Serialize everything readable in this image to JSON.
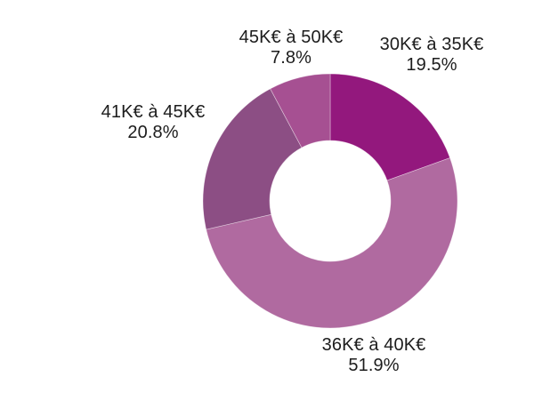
{
  "page": {
    "background": "#ffffff",
    "label_color": "#1c1c1c"
  },
  "chart_data": {
    "type": "pie",
    "variant": "donut",
    "title": "",
    "legend": "none",
    "direction": "clockwise",
    "start_angle_deg": 0,
    "center": [
      371,
      226
    ],
    "outer_radius": 143,
    "inner_radius": 68,
    "categories": [
      "30K€ à 35K€",
      "36K€ à 40K€",
      "41K€ à 45K€",
      "45K€ à 50K€"
    ],
    "values": [
      19.5,
      51.9,
      20.8,
      7.8
    ],
    "unit": "%",
    "slices": [
      {
        "id": "30-35",
        "label": "30K€ à 35K€",
        "pct_label": "19.5%",
        "value": 19.5,
        "color": "#93187d"
      },
      {
        "id": "36-40",
        "label": "36K€ à 40K€",
        "pct_label": "51.9%",
        "value": 51.9,
        "color": "#b06aa0"
      },
      {
        "id": "41-45",
        "label": "41K€ à 45K€",
        "pct_label": "20.8%",
        "value": 20.8,
        "color": "#8c4e84"
      },
      {
        "id": "45-50",
        "label": "45K€ à 50K€",
        "pct_label": "7.8%",
        "value": 7.8,
        "color": "#a65092"
      }
    ],
    "separator_stroke": "rgba(255,255,255,0.5)"
  }
}
